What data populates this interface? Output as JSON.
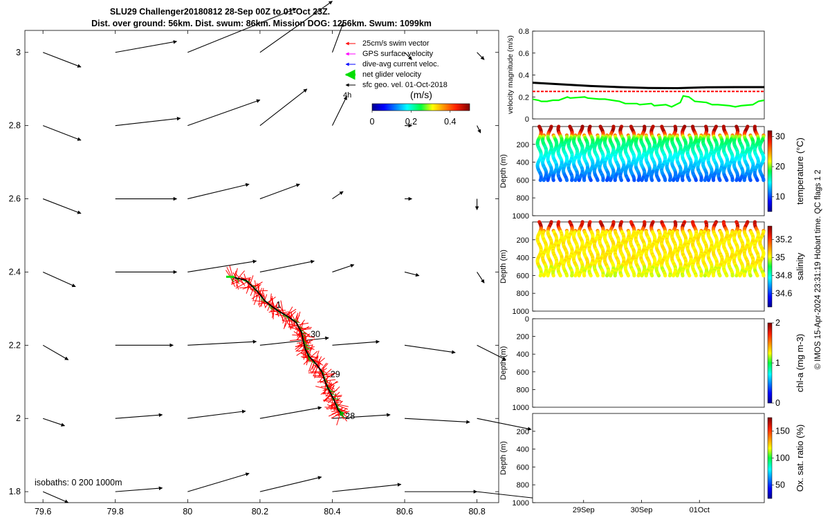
{
  "title_line1": "SLU29 Challenger20180812 28-Sep 00Z to 01-Oct 23Z.",
  "title_line2": "Dist. over ground: 56km. Dist. swum: 86km. Mission DOG: 1256km. Swum: 1099km",
  "footer_credit": "© IMOS 15-Apr-2024 23:31:19 Hobart time. QC flags 1  2",
  "colors": {
    "swim": "#ff0000",
    "gps": "#ff00ff",
    "dive_avg": "#0000ff",
    "net": "#00dd00",
    "sfc_geo": "#000000",
    "track": "#000000"
  },
  "chart_data": [
    {
      "type": "scatter",
      "name": "map",
      "xlim": [
        79.55,
        80.86
      ],
      "ylim": [
        1.77,
        3.06
      ],
      "xticks": [
        79.6,
        79.8,
        80,
        80.2,
        80.4,
        80.6,
        80.8
      ],
      "xtick_labels": [
        "79.6",
        "79.8",
        "80",
        "80.2",
        "80.4",
        "80.6",
        "80.8"
      ],
      "yticks": [
        1.8,
        2,
        2.2,
        2.4,
        2.6,
        2.8,
        3
      ],
      "ytick_labels": [
        "1.8",
        "2",
        "2.2",
        "2.4",
        "2.6",
        "2.8",
        "3"
      ],
      "legend": [
        {
          "label": "25cm/s swim vector",
          "color": "#ff0000"
        },
        {
          "label": "GPS surface velocity",
          "color": "#ff00ff"
        },
        {
          "label": "dive-avg current veloc.",
          "color": "#0000ff"
        },
        {
          "label": "net glider velocity",
          "color": "#00dd00"
        },
        {
          "label": "sfc geo. vel. 01-Oct-2018",
          "color": "#000000"
        }
      ],
      "scale_label": "4h",
      "colorbar_unit": "(m/s)",
      "colorbar_range": [
        0,
        0.5
      ],
      "colorbar_ticks": [
        0,
        0.2,
        0.4
      ],
      "colorbar_tick_labels": [
        "0",
        "0.2",
        "0.4"
      ],
      "isobaths_label": "isobaths: 0   200  1000m",
      "day_labels": [
        {
          "text": "28",
          "lon": 80.436,
          "lat": 2.006
        },
        {
          "text": "29",
          "lon": 80.395,
          "lat": 2.12
        },
        {
          "text": "30",
          "lon": 80.34,
          "lat": 2.23
        },
        {
          "text": "1",
          "lon": 80.245,
          "lat": 2.31
        }
      ],
      "glider_track": [
        [
          80.118,
          2.387
        ],
        [
          80.16,
          2.378
        ],
        [
          80.19,
          2.35
        ],
        [
          80.215,
          2.32
        ],
        [
          80.245,
          2.297
        ],
        [
          80.275,
          2.28
        ],
        [
          80.3,
          2.262
        ],
        [
          80.315,
          2.235
        ],
        [
          80.32,
          2.21
        ],
        [
          80.325,
          2.19
        ],
        [
          80.335,
          2.17
        ],
        [
          80.35,
          2.155
        ],
        [
          80.37,
          2.13
        ],
        [
          80.38,
          2.1
        ],
        [
          80.392,
          2.075
        ],
        [
          80.405,
          2.05
        ],
        [
          80.415,
          2.025
        ],
        [
          80.425,
          2.012
        ]
      ],
      "geo_vectors": {
        "lons": [
          79.6,
          79.8,
          80,
          80.2,
          80.4,
          80.6,
          80.8
        ],
        "lats": [
          3,
          2.8,
          2.6,
          2.4,
          2.2,
          2,
          1.8
        ],
        "rows": [
          [
            [
              0.105,
              -0.04
            ],
            [
              0.17,
              0.03
            ],
            [
              0.3,
              0.12
            ],
            [
              0.2,
              0.14
            ],
            [
              0.03,
              0.08
            ],
            [
              0.02,
              -0.02
            ],
            [
              0.02,
              -0.02
            ]
          ],
          [
            [
              0.105,
              -0.04
            ],
            [
              0.18,
              0.02
            ],
            [
              0.2,
              0.07
            ],
            [
              0.13,
              0.1
            ],
            [
              0.04,
              0.08
            ],
            [
              0.02,
              0
            ],
            [
              0.01,
              -0.02
            ]
          ],
          [
            [
              0.105,
              -0.04
            ],
            [
              0.17,
              0.0
            ],
            [
              0.17,
              0.04
            ],
            [
              0.11,
              0.04
            ],
            [
              0.03,
              0.02
            ],
            [
              0.02,
              0
            ],
            [
              0.0,
              -0.03
            ]
          ],
          [
            [
              0.09,
              -0.04
            ],
            [
              0.17,
              0.0
            ],
            [
              0.19,
              0.03
            ],
            [
              0.15,
              0.03
            ],
            [
              0.06,
              0.02
            ],
            [
              0.04,
              -0.01
            ],
            [
              0.02,
              -0.03
            ]
          ],
          [
            [
              0.07,
              -0.04
            ],
            [
              0.16,
              0.0
            ],
            [
              0.19,
              0.01
            ],
            [
              0.19,
              0.02
            ],
            [
              0.13,
              0.01
            ],
            [
              0.14,
              -0.02
            ],
            [
              0.08,
              -0.04
            ]
          ],
          [
            [
              0.06,
              -0.02
            ],
            [
              0.13,
              0.01
            ],
            [
              0.16,
              0.02
            ],
            [
              0.17,
              0.03
            ],
            [
              0.16,
              0.01
            ],
            [
              0.18,
              -0.01
            ],
            [
              0.15,
              -0.03
            ]
          ],
          [
            [
              0.07,
              -0.03
            ],
            [
              0.13,
              0.01
            ],
            [
              0.17,
              0.05
            ],
            [
              0.17,
              0.04
            ],
            [
              0.19,
              0.02
            ],
            [
              0.2,
              0.0
            ],
            [
              0.18,
              -0.02
            ]
          ]
        ]
      }
    },
    {
      "type": "line",
      "name": "velocity",
      "ylabel": "velocity magnitude (m/s)",
      "ylim": [
        0,
        0.8
      ],
      "yticks": [
        0,
        0.2,
        0.4,
        0.6,
        0.8
      ],
      "ytick_labels": [
        "0",
        "0.2",
        "0.4",
        "0.6",
        "0.8"
      ],
      "xlim": [
        0,
        4
      ],
      "series": [
        {
          "color": "#000000",
          "x": [
            0,
            0.5,
            1,
            1.5,
            2,
            2.5,
            3,
            3.5,
            4
          ],
          "y": [
            0.33,
            0.315,
            0.3,
            0.29,
            0.282,
            0.28,
            0.288,
            0.29,
            0.29
          ]
        },
        {
          "color": "#ff0000",
          "x": [
            0,
            4
          ],
          "y": [
            0.25,
            0.25
          ]
        },
        {
          "color": "#00ff00",
          "x": [
            0,
            0.1,
            0.15,
            0.25,
            0.35,
            0.45,
            0.6,
            0.65,
            0.9,
            0.95,
            1.15,
            1.25,
            1.5,
            1.6,
            1.8,
            1.85,
            2.05,
            2.1,
            2.3,
            2.4,
            2.55,
            2.6,
            2.7,
            2.8,
            3.0,
            3.1,
            3.2,
            3.4,
            3.5,
            3.6,
            3.8,
            3.9,
            4
          ],
          "y": [
            0.18,
            0.17,
            0.16,
            0.16,
            0.17,
            0.17,
            0.2,
            0.19,
            0.2,
            0.19,
            0.18,
            0.18,
            0.16,
            0.14,
            0.14,
            0.13,
            0.14,
            0.12,
            0.13,
            0.11,
            0.15,
            0.21,
            0.2,
            0.16,
            0.15,
            0.13,
            0.13,
            0.12,
            0.11,
            0.12,
            0.13,
            0.16,
            0.17
          ]
        }
      ]
    },
    {
      "type": "scatter",
      "name": "temperature",
      "ylabel": "Depth (m)",
      "yticks": [
        200,
        400,
        600,
        800,
        1000
      ],
      "ytick_labels": [
        "200",
        "400",
        "600",
        "800",
        "1000"
      ],
      "ylim": [
        0,
        1000
      ],
      "colorbar_label": "temperature (°C)",
      "colorbar_range": [
        5,
        32
      ],
      "colorbar_ticks": [
        10,
        20,
        30
      ],
      "colorbar_tick_labels": [
        "10",
        "20",
        "30"
      ],
      "colormap": "jet",
      "profile_count": 44,
      "profile_max_depth": 610
    },
    {
      "type": "scatter",
      "name": "salinity",
      "ylabel": "Depth (m)",
      "yticks": [
        200,
        400,
        600,
        800,
        1000
      ],
      "ytick_labels": [
        "200",
        "400",
        "600",
        "800",
        "1000"
      ],
      "ylim": [
        0,
        1000
      ],
      "colorbar_label": "salinity",
      "colorbar_range": [
        34.45,
        35.35
      ],
      "colorbar_ticks": [
        34.6,
        34.8,
        35,
        35.2
      ],
      "colorbar_tick_labels": [
        "34.6",
        "34.8",
        "35",
        "35.2"
      ],
      "colormap": "jet",
      "profile_count": 44,
      "profile_max_depth": 610
    },
    {
      "type": "scatter",
      "name": "chla",
      "ylabel": "Depth (m)",
      "yticks": [
        0,
        200,
        400,
        600,
        800,
        1000
      ],
      "ytick_labels": [
        "0",
        "200",
        "400",
        "600",
        "800",
        "1000"
      ],
      "ylim": [
        0,
        1000
      ],
      "colorbar_label": "chl-a (mg m-3)",
      "colorbar_range": [
        0,
        2
      ],
      "colorbar_ticks": [
        0,
        1,
        2
      ],
      "colorbar_tick_labels": [
        "0",
        "1",
        "2"
      ],
      "colormap": "jet"
    },
    {
      "type": "scatter",
      "name": "oxygen",
      "ylabel": "Depth (m)",
      "yticks": [
        200,
        400,
        600,
        800,
        1000
      ],
      "ytick_labels": [
        "200",
        "400",
        "600",
        "800",
        "1000"
      ],
      "ylim": [
        0,
        1000
      ],
      "colorbar_label": "Ox. sat. ratio (%)",
      "colorbar_range": [
        25,
        175
      ],
      "colorbar_ticks": [
        50,
        100,
        150
      ],
      "colorbar_tick_labels": [
        "50",
        "100",
        "150"
      ],
      "colormap": "jet",
      "xticks": [
        1.0,
        2.0,
        3.0
      ],
      "xtick_labels": [
        "29Sep",
        "30Sep",
        "01Oct"
      ],
      "xlim": [
        0,
        4
      ]
    }
  ]
}
